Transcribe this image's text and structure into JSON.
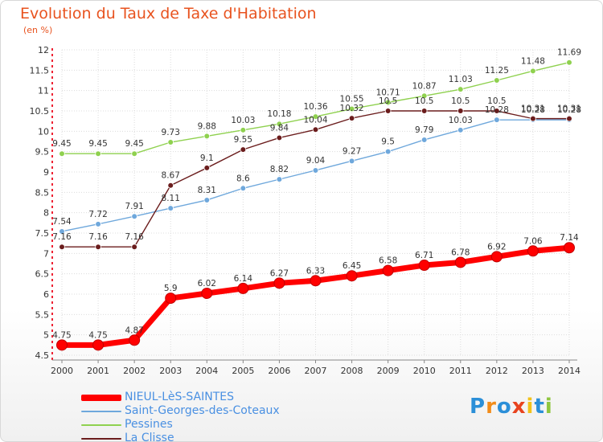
{
  "title": "Evolution du Taux de Taxe d'Habitation",
  "unit_label": "(en %)",
  "logo_text": "Proxiti",
  "chart_data": {
    "type": "line",
    "title": "Evolution du Taux de Taxe d'Habitation",
    "ylabel": "(en %)",
    "x": [
      "2000",
      "2001",
      "2002",
      "2003",
      "2004",
      "2005",
      "2006",
      "2007",
      "2008",
      "2009",
      "2010",
      "2011",
      "2012",
      "2013",
      "2014"
    ],
    "ylim": [
      4.5,
      12
    ],
    "yticks": [
      "4.5",
      "5",
      "5.5",
      "6",
      "6.5",
      "7",
      "7.5",
      "8",
      "8.5",
      "9",
      "9.5",
      "10",
      "10.5",
      "11",
      "11.5",
      "12"
    ],
    "grid": true,
    "legend_position": "bottom-left",
    "series": [
      {
        "name": "NIEUL-LèS-SAINTES",
        "color": "#ff0000",
        "values": [
          4.75,
          4.75,
          4.87,
          5.9,
          6.02,
          6.14,
          6.27,
          6.33,
          6.45,
          6.58,
          6.71,
          6.78,
          6.92,
          7.06,
          7.14
        ],
        "labels": [
          "4.75",
          "4.75",
          "4.87",
          "5.9",
          "6.02",
          "6.14",
          "6.27",
          "6.33",
          "6.45",
          "6.58",
          "6.71",
          "6.78",
          "6.92",
          "7.06",
          "7.14"
        ]
      },
      {
        "name": "Saint-Georges-des-Coteaux",
        "color": "#6fa8dc",
        "values": [
          7.54,
          7.72,
          7.91,
          8.11,
          8.31,
          8.6,
          8.82,
          9.04,
          9.27,
          9.5,
          9.79,
          10.03,
          10.28,
          10.28,
          10.28
        ],
        "labels": [
          "7.54",
          "7.72",
          "7.91",
          "8.11",
          "8.31",
          "8.6",
          "8.82",
          "9.04",
          "9.27",
          "9.5",
          "9.79",
          "10.03",
          "10.28",
          "10.28",
          "10.28"
        ]
      },
      {
        "name": "Pessines",
        "color": "#8fd14f",
        "values": [
          9.45,
          9.45,
          9.45,
          9.73,
          9.88,
          10.03,
          10.18,
          10.36,
          10.55,
          10.71,
          10.87,
          11.03,
          11.25,
          11.48,
          11.69
        ],
        "labels": [
          "9.45",
          "9.45",
          "9.45",
          "9.73",
          "9.88",
          "10.03",
          "10.18",
          "10.36",
          "10.55",
          "10.71",
          "10.87",
          "11.03",
          "11.25",
          "11.48",
          "11.69"
        ]
      },
      {
        "name": "La Clisse",
        "color": "#6b1d1d",
        "values": [
          7.16,
          7.16,
          7.16,
          8.67,
          9.1,
          9.55,
          9.84,
          10.04,
          10.32,
          10.5,
          10.5,
          10.5,
          10.5,
          10.31,
          10.31
        ],
        "labels": [
          "7.16",
          "7.16",
          "7.16",
          "8.67",
          "9.1",
          "9.55",
          "9.84",
          "10.04",
          "10.32",
          "10.5",
          "10.5",
          "10.5",
          "10.5",
          "10.31",
          "10.31"
        ]
      }
    ]
  }
}
